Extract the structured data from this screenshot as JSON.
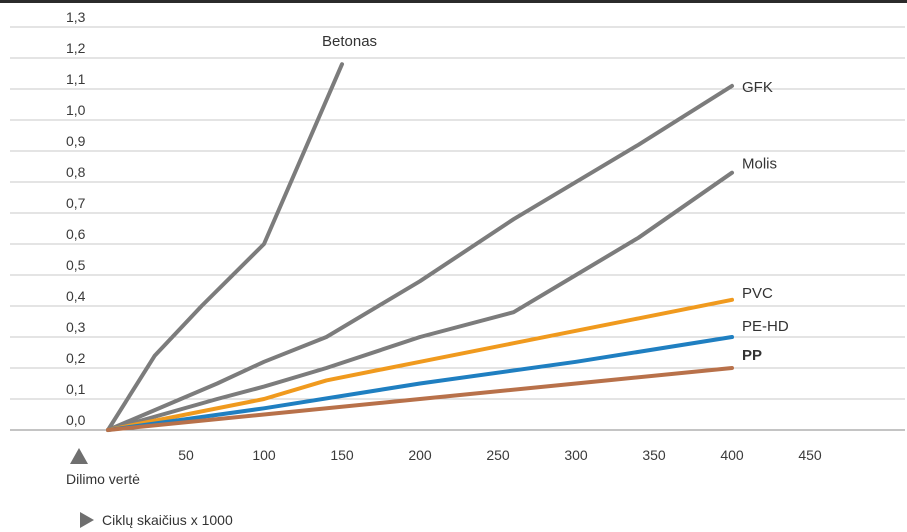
{
  "chart_data": {
    "type": "line",
    "title": "",
    "xlabel": "Ciklų skaičius x 1000",
    "ylabel": "Dilimo vertė",
    "xlim": [
      0,
      450
    ],
    "ylim": [
      0,
      1.3
    ],
    "x_ticks": [
      "50",
      "100",
      "150",
      "200",
      "250",
      "300",
      "350",
      "400",
      "450"
    ],
    "y_ticks": [
      "0,0",
      "0,1",
      "0,2",
      "0,3",
      "0,4",
      "0,5",
      "0,6",
      "0,7",
      "0,8",
      "0,9",
      "1,0",
      "1,1",
      "1,2",
      "1,3"
    ],
    "grid": "horizontal",
    "series": [
      {
        "name": "Betonas",
        "color": "#7c7c7c",
        "bold": false,
        "points": [
          [
            0,
            0
          ],
          [
            30,
            0.24
          ],
          [
            60,
            0.4
          ],
          [
            100,
            0.6
          ],
          [
            150,
            1.18
          ]
        ]
      },
      {
        "name": "GFK",
        "color": "#7c7c7c",
        "bold": false,
        "points": [
          [
            0,
            0
          ],
          [
            70,
            0.15
          ],
          [
            100,
            0.22
          ],
          [
            140,
            0.3
          ],
          [
            200,
            0.48
          ],
          [
            260,
            0.68
          ],
          [
            340,
            0.92
          ],
          [
            400,
            1.11
          ]
        ]
      },
      {
        "name": "Molis",
        "color": "#7c7c7c",
        "bold": false,
        "points": [
          [
            0,
            0
          ],
          [
            70,
            0.1
          ],
          [
            100,
            0.14
          ],
          [
            140,
            0.2
          ],
          [
            200,
            0.3
          ],
          [
            260,
            0.38
          ],
          [
            300,
            0.5
          ],
          [
            340,
            0.62
          ],
          [
            400,
            0.83
          ]
        ]
      },
      {
        "name": "PVC",
        "color": "#f09a1e",
        "bold": false,
        "points": [
          [
            0,
            0
          ],
          [
            100,
            0.1
          ],
          [
            140,
            0.16
          ],
          [
            200,
            0.22
          ],
          [
            260,
            0.28
          ],
          [
            340,
            0.36
          ],
          [
            400,
            0.42
          ]
        ]
      },
      {
        "name": "PE-HD",
        "color": "#1f7fc1",
        "bold": false,
        "points": [
          [
            0,
            0
          ],
          [
            100,
            0.07
          ],
          [
            200,
            0.15
          ],
          [
            300,
            0.22
          ],
          [
            400,
            0.3
          ]
        ]
      },
      {
        "name": "PP",
        "color": "#b8714a",
        "bold": true,
        "points": [
          [
            0,
            0
          ],
          [
            100,
            0.05
          ],
          [
            200,
            0.1
          ],
          [
            300,
            0.15
          ],
          [
            400,
            0.2
          ]
        ]
      }
    ]
  },
  "icons": {
    "y_axis_marker": "triangle-up-icon",
    "x_axis_marker": "triangle-right-icon"
  },
  "axis_marker_colors": {
    "y": "#6f6f6f",
    "x": "#6f6f6f"
  }
}
